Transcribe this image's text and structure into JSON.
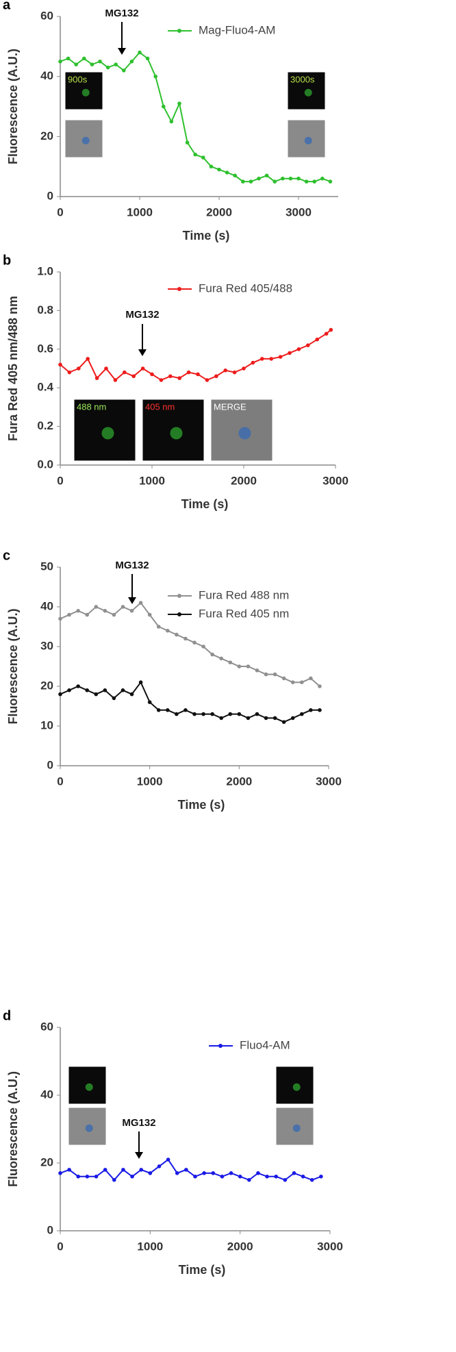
{
  "chart_data": [
    {
      "type": "line",
      "panel": "a",
      "annotation": "MG132",
      "inset_labels": [
        "900s",
        "3000s"
      ],
      "xlabel": "Time (s)",
      "ylabel": "Fluorescence (A.U.)",
      "x": [
        0,
        100,
        200,
        300,
        400,
        500,
        600,
        700,
        800,
        900,
        1000,
        1100,
        1200,
        1300,
        1400,
        1500,
        1600,
        1700,
        1800,
        1900,
        2000,
        2100,
        2200,
        2300,
        2400,
        2500,
        2600,
        2700,
        2800,
        2900,
        3000,
        3100,
        3200,
        3300,
        3400
      ],
      "series": [
        {
          "name": "Mag-Fluo4-AM",
          "color": "#2ec02e",
          "values": [
            45,
            46,
            44,
            46,
            44,
            45,
            43,
            44,
            42,
            45,
            48,
            46,
            40,
            30,
            25,
            31,
            18,
            14,
            13,
            10,
            9,
            8,
            7,
            5,
            5,
            6,
            7,
            5,
            6,
            6,
            6,
            5,
            5,
            6,
            5
          ]
        }
      ],
      "xlim": [
        0,
        3500
      ],
      "xticks": [
        0,
        1000,
        2000,
        3000
      ],
      "ylim": [
        0,
        60
      ],
      "yticks": [
        0,
        20,
        40,
        60
      ],
      "legend": "upper right"
    },
    {
      "type": "line",
      "panel": "b",
      "annotation": "MG132",
      "inset_labels": [
        "488 nm",
        "405 nm",
        "MERGE"
      ],
      "xlabel": "Time (s)",
      "ylabel": "Fura Red 405 nm/488 nm",
      "x": [
        0,
        100,
        200,
        300,
        400,
        500,
        600,
        700,
        800,
        900,
        1000,
        1100,
        1200,
        1300,
        1400,
        1500,
        1600,
        1700,
        1800,
        1900,
        2000,
        2100,
        2200,
        2300,
        2400,
        2500,
        2600,
        2700,
        2800,
        2900,
        2950
      ],
      "series": [
        {
          "name": "Fura Red 405/488",
          "color": "#ee1c1c",
          "values": [
            0.52,
            0.48,
            0.5,
            0.55,
            0.45,
            0.5,
            0.44,
            0.48,
            0.46,
            0.5,
            0.47,
            0.44,
            0.46,
            0.45,
            0.48,
            0.47,
            0.44,
            0.46,
            0.49,
            0.48,
            0.5,
            0.53,
            0.55,
            0.55,
            0.56,
            0.58,
            0.6,
            0.62,
            0.65,
            0.68,
            0.7
          ]
        }
      ],
      "xlim": [
        0,
        3000
      ],
      "xticks": [
        0,
        1000,
        2000,
        3000
      ],
      "ylim": [
        0,
        1
      ],
      "yticks": [
        {
          "value": 0,
          "label": "0.0"
        },
        {
          "value": 0.2,
          "label": "0.2"
        },
        {
          "value": 0.4,
          "label": "0.4"
        },
        {
          "value": 0.6,
          "label": "0.6"
        },
        {
          "value": 0.8,
          "label": "0.8"
        },
        {
          "value": 1,
          "label": "1.0"
        }
      ],
      "legend": "upper right"
    },
    {
      "type": "line",
      "panel": "c",
      "annotation": "MG132",
      "xlabel": "Time (s)",
      "ylabel": "Fluorescence (A.U.)",
      "x": [
        0,
        100,
        200,
        300,
        400,
        500,
        600,
        700,
        800,
        900,
        1000,
        1100,
        1200,
        1300,
        1400,
        1500,
        1600,
        1700,
        1800,
        1900,
        2000,
        2100,
        2200,
        2300,
        2400,
        2500,
        2600,
        2700,
        2800,
        2900
      ],
      "series": [
        {
          "name": "Fura Red 488 nm",
          "color": "#909090",
          "values": [
            37,
            38,
            39,
            38,
            40,
            39,
            38,
            40,
            39,
            41,
            38,
            35,
            34,
            33,
            32,
            31,
            30,
            28,
            27,
            26,
            25,
            25,
            24,
            23,
            23,
            22,
            21,
            21,
            22,
            20
          ]
        },
        {
          "name": "Fura Red 405 nm",
          "color": "#111111",
          "values": [
            18,
            19,
            20,
            19,
            18,
            19,
            17,
            19,
            18,
            21,
            16,
            14,
            14,
            13,
            14,
            13,
            13,
            13,
            12,
            13,
            13,
            12,
            13,
            12,
            12,
            11,
            12,
            13,
            14,
            14
          ]
        }
      ],
      "xlim": [
        0,
        3000
      ],
      "xticks": [
        0,
        1000,
        2000,
        3000
      ],
      "ylim": [
        0,
        50
      ],
      "yticks": [
        0,
        10,
        20,
        30,
        40,
        50
      ],
      "legend": "upper right"
    },
    {
      "type": "line",
      "panel": "d",
      "annotation": "MG132",
      "xlabel": "Time (s)",
      "ylabel": "Fluorescence (A.U.)",
      "x": [
        0,
        100,
        200,
        300,
        400,
        500,
        600,
        700,
        800,
        900,
        1000,
        1100,
        1200,
        1300,
        1400,
        1500,
        1600,
        1700,
        1800,
        1900,
        2000,
        2100,
        2200,
        2300,
        2400,
        2500,
        2600,
        2700,
        2800,
        2900
      ],
      "series": [
        {
          "name": "Fluo4-AM",
          "color": "#1a1ae6",
          "values": [
            17,
            18,
            16,
            16,
            16,
            18,
            15,
            18,
            16,
            18,
            17,
            19,
            21,
            17,
            18,
            16,
            17,
            17,
            16,
            17,
            16,
            15,
            17,
            16,
            16,
            15,
            17,
            16,
            15,
            16
          ]
        }
      ],
      "xlim": [
        0,
        3000
      ],
      "xticks": [
        0,
        1000,
        2000,
        3000
      ],
      "ylim": [
        0,
        60
      ],
      "yticks": [
        0,
        20,
        40,
        60
      ],
      "legend": "upper right"
    }
  ]
}
